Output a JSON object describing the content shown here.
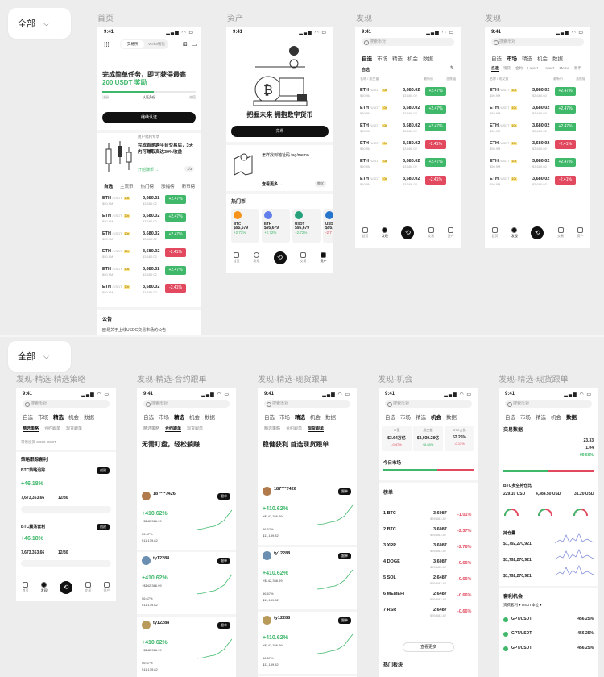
{
  "filter1": "全部",
  "filter2": "全部",
  "labels": {
    "home": "首页",
    "assets": "资产",
    "discover1": "发现",
    "discover2": "发现",
    "strategy": "发现-精选-精选策略",
    "contract": "发现-精选-合约跟单",
    "spot": "发现-精选-现货跟单",
    "chance": "发现-机会",
    "spot2": "发现-精选-现货跟单"
  },
  "status": {
    "time": "9:41",
    "icons": "▂▄▆ ◠ ▭"
  },
  "home": {
    "tab_trade": "交易所",
    "tab_web3": "Web3钱包",
    "task_title": "完成简单任务，即可获得最高",
    "task_reward": "200 USDT 奖励",
    "step1": "注册",
    "step2": "认证身份",
    "step3": "充值",
    "verify_btn": "继续认证",
    "promo_title": "用户福利专享",
    "promo_text": "完成首笔跨平台交易后，3天内可赚取高达30%收益",
    "promo_link": "开始赚币 →",
    "promo_page": "1/3",
    "market_tabs": [
      "自选",
      "主流币",
      "热门榜",
      "涨幅榜",
      "新币榜"
    ],
    "announce_title": "公告",
    "announce_text": "欧易关于上线USDC交易市场的公告"
  },
  "assets": {
    "headline": "把握未来 拥抱数字货币",
    "deposit_btn": "充币",
    "tutorial": "怎样找到地址码 tag/memo",
    "more": "查看更多 →",
    "tag": "教学",
    "hot_title": "热门币",
    "coins": [
      {
        "name": "BTC",
        "price": "$95,679",
        "chg": "+2.72%"
      },
      {
        "name": "ETH",
        "price": "$95,679",
        "chg": "+2.72%"
      },
      {
        "name": "USDT",
        "price": "$95,679",
        "chg": "+2.72%"
      },
      {
        "name": "USDC",
        "price": "$95,679",
        "chg": "-2.7"
      }
    ]
  },
  "discover": {
    "search": "搜索币对",
    "tabs": [
      "自选",
      "市场",
      "精选",
      "机会",
      "数据"
    ],
    "market_tabs": [
      "自选",
      "现货",
      "合约",
      "Layer1",
      "Layer2",
      "Meme",
      "新币"
    ],
    "head": [
      "名称 / 成交量",
      "最新价",
      "涨跌幅"
    ]
  },
  "rows": [
    {
      "coin": "ETH",
      "pair": "/USDT",
      "lev": "10x",
      "vol": "$50.9M",
      "price": "3,680.02",
      "fiat": "$3,680.02",
      "chg": "+2.47%",
      "dir": "up"
    },
    {
      "coin": "ETH",
      "pair": "/USDT",
      "lev": "10x",
      "vol": "$50.9M",
      "price": "3,680.02",
      "fiat": "$3,680.02",
      "chg": "+2.47%",
      "dir": "up"
    },
    {
      "coin": "ETH",
      "pair": "/USDT",
      "lev": "10x",
      "vol": "$50.9M",
      "price": "3,680.02",
      "fiat": "$3,680.02",
      "chg": "+2.47%",
      "dir": "up"
    },
    {
      "coin": "ETH",
      "pair": "/USDT",
      "lev": "10x",
      "vol": "$50.9M",
      "price": "3,680.02",
      "fiat": "$3,680.02",
      "chg": "-2.41%",
      "dir": "dn"
    },
    {
      "coin": "ETH",
      "pair": "/USDT",
      "lev": "10x",
      "vol": "$50.9M",
      "price": "3,680.02",
      "fiat": "$3,680.02",
      "chg": "+2.47%",
      "dir": "up"
    },
    {
      "coin": "ETH",
      "pair": "/USDT",
      "lev": "10x",
      "vol": "$50.9M",
      "price": "3,680.02",
      "fiat": "$3,680.02",
      "chg": "-2.41%",
      "dir": "dn"
    }
  ],
  "nav": [
    "首页",
    "发现",
    "",
    "交易",
    "资产"
  ],
  "strategy": {
    "subtabs": [
      "精选策略",
      "合约跟单",
      "现货跟单"
    ],
    "filter": "可供投资 3,000 USDT",
    "s1_title": "策略跟踪套利",
    "s1_name": "BTC策略追踪",
    "s1_ret": "+46.18%",
    "s1_aum": "7,673,353.66",
    "s1_days": "12/80",
    "s2_name": "BTC震荡套利",
    "s2_ret": "+46.18%",
    "s2_aum": "7,673,353.66",
    "s2_days": "12/80",
    "use_btn": "创建"
  },
  "copy": {
    "headline1": "无需盯盘，轻松躺赚",
    "headline2": "稳健获利 首选现货跟单",
    "traders": [
      {
        "name": "187***7426",
        "ret": "+410.62%",
        "pnl": "+$142,366.99",
        "aum": "$11,139.82",
        "win": "56.67%"
      },
      {
        "name": "ty12288",
        "ret": "+410.62%",
        "pnl": "+$142,366.99",
        "aum": "$11,139.82",
        "win": "56.67%"
      },
      {
        "name": "ty12288",
        "ret": "+410.62%",
        "pnl": "+$142,366.99",
        "aum": "$11,139.82",
        "win": "56.67%"
      }
    ],
    "follow": "跟单"
  },
  "chance": {
    "stats": [
      {
        "label": "市值",
        "value": "$3.64万亿",
        "chg": "-0.47%"
      },
      {
        "label": "成交额",
        "value": "$3,939.28亿",
        "chg": "+8.88%"
      },
      {
        "label": "BTC占比",
        "value": "52.25%",
        "chg": "-0.13%"
      }
    ],
    "today": "今日市场",
    "rank_title": "榜单",
    "ranks": [
      {
        "n": "1",
        "coin": "BTC",
        "price": "3.6087",
        "fiat": "$95,683.62",
        "chg": "-1.01%"
      },
      {
        "n": "2",
        "coin": "BTC",
        "price": "3.6087",
        "fiat": "$95,683.62",
        "chg": "-2.37%"
      },
      {
        "n": "3",
        "coin": "XRP",
        "price": "3.6087",
        "fiat": "$95,683.62",
        "chg": "-2.78%"
      },
      {
        "n": "4",
        "coin": "DOGE",
        "price": "3.6087",
        "fiat": "$95,683.62",
        "chg": "-0.66%"
      },
      {
        "n": "5",
        "coin": "SOL",
        "price": "2.6487",
        "fiat": "$95,683.62",
        "chg": "-0.66%"
      },
      {
        "n": "6",
        "coin": "MEMEFI",
        "price": "2.6487",
        "fiat": "$95,683.62",
        "chg": "-0.66%"
      },
      {
        "n": "7",
        "coin": "RSR",
        "price": "2.6487",
        "fiat": "$95,683.62",
        "chg": "-0.66%"
      }
    ],
    "more": "查看更多",
    "hot": "热门板块"
  },
  "data": {
    "title": "交易数据",
    "v1": "23.33",
    "v2": "1.04",
    "v3": "99.56%",
    "bar_title": "BTC多空持仓比",
    "g1": "229.10 USD",
    "g2": "4,384.50 USD",
    "g3": "31.20 USD",
    "flow_title": "持仓量",
    "flow1": "$1,792,270,921",
    "flow2": "$1,792,270,921",
    "flow3": "$1,792,270,921",
    "opp_title": "套利机会",
    "opp_filter": "资费套利 ▾   USDT本位 ▾",
    "opps": [
      {
        "pair": "GPT/USDT",
        "apr": "456.25%"
      },
      {
        "pair": "GPT/USDT",
        "apr": "456.25%"
      },
      {
        "pair": "GPT/USDT",
        "apr": "456.25%"
      }
    ]
  }
}
